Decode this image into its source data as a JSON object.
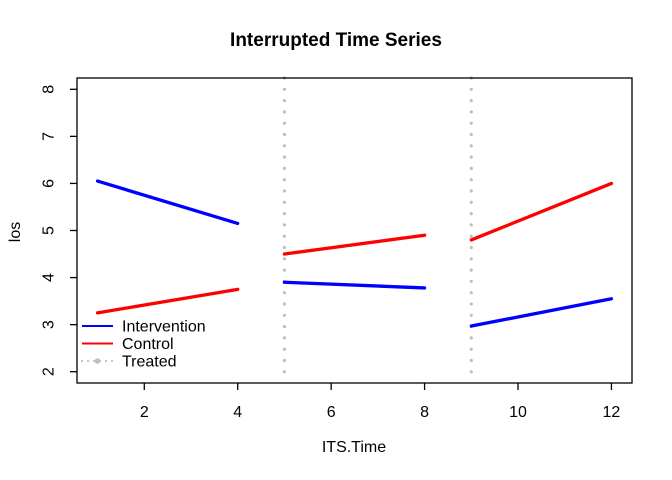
{
  "chart_data": {
    "type": "line",
    "title": "Interrupted Time Series",
    "xlabel": "ITS.Time",
    "ylabel": "los",
    "xlim": [
      0.56,
      12.44
    ],
    "ylim": [
      1.76,
      8.24
    ],
    "x_ticks": [
      2,
      4,
      6,
      8,
      10,
      12
    ],
    "y_ticks": [
      2,
      3,
      4,
      5,
      6,
      7,
      8
    ],
    "grid": false,
    "legend_position": "bottomleft",
    "axis_color": "#000000",
    "series": [
      {
        "name": "Intervention",
        "color": "#0000FF",
        "style": "solid",
        "segments": [
          {
            "x": [
              1,
              4
            ],
            "y": [
              6.05,
              5.15
            ]
          },
          {
            "x": [
              5,
              8
            ],
            "y": [
              3.9,
              3.78
            ]
          },
          {
            "x": [
              9,
              12
            ],
            "y": [
              2.97,
              3.55
            ]
          }
        ]
      },
      {
        "name": "Control",
        "color": "#FF0000",
        "style": "solid",
        "segments": [
          {
            "x": [
              1,
              4
            ],
            "y": [
              3.25,
              3.75
            ]
          },
          {
            "x": [
              5,
              8
            ],
            "y": [
              4.5,
              4.9
            ]
          },
          {
            "x": [
              9,
              12
            ],
            "y": [
              4.8,
              6.0
            ]
          }
        ]
      },
      {
        "name": "Treated",
        "color": "#BEBEBE",
        "style": "dotted-marker",
        "vlines_x": [
          5,
          9
        ]
      }
    ]
  }
}
